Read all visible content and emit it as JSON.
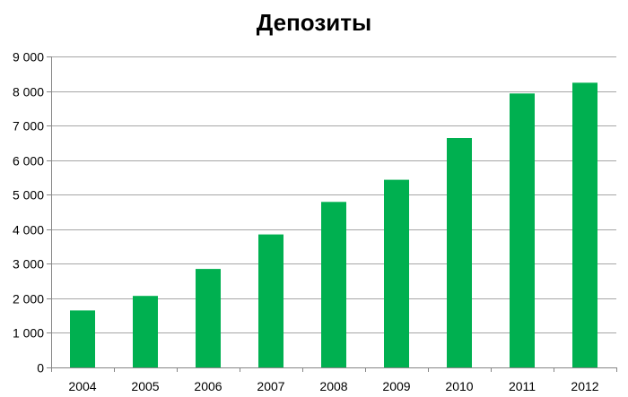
{
  "chart_data": {
    "type": "bar",
    "title": "Депозиты",
    "xlabel": "",
    "ylabel": "",
    "categories": [
      "2004",
      "2005",
      "2006",
      "2007",
      "2008",
      "2009",
      "2010",
      "2011",
      "2012"
    ],
    "values": [
      1650,
      2070,
      2850,
      3850,
      4790,
      5430,
      6640,
      7930,
      8240
    ],
    "ylim": [
      0,
      9000
    ],
    "yticks": [
      0,
      1000,
      2000,
      3000,
      4000,
      5000,
      6000,
      7000,
      8000,
      9000
    ],
    "ytick_labels": [
      "0",
      "1 000",
      "2 000",
      "3 000",
      "4 000",
      "5 000",
      "6 000",
      "7 000",
      "8 000",
      "9 000"
    ],
    "grid": "horizontal",
    "legend": "none",
    "bar_color": "#00B050",
    "grid_color": "#A6A6A6",
    "axis_color": "#868686"
  }
}
